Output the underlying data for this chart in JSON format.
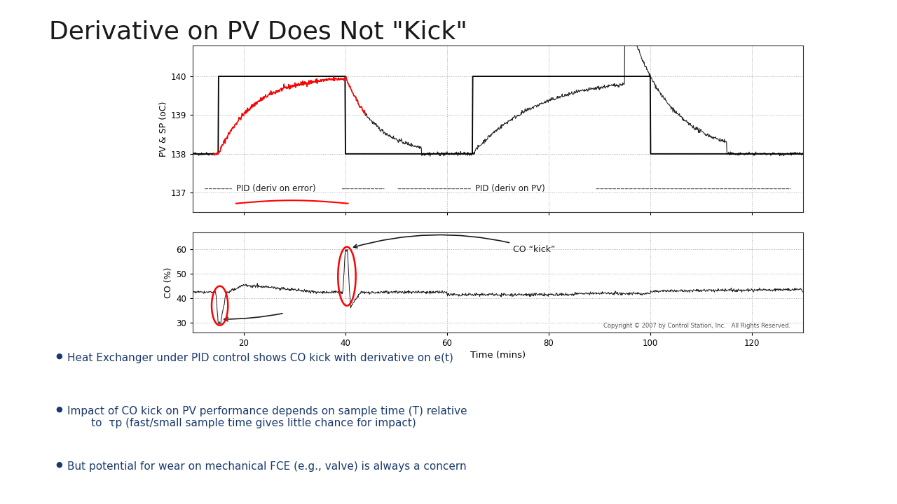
{
  "title": "Derivative on PV Does Not \"Kick\"",
  "title_fontsize": 26,
  "title_color": "#1a1a1a",
  "xlabel": "Time (mins)",
  "ylabel_top": "PV & SP (oC)",
  "ylabel_bottom": "CO (%)",
  "x_ticks": [
    20,
    40,
    60,
    80,
    100,
    120
  ],
  "x_lim": [
    10,
    130
  ],
  "pv_ylim": [
    136.5,
    140.8
  ],
  "pv_yticks": [
    137,
    138,
    139,
    140
  ],
  "co_ylim": [
    26,
    67
  ],
  "co_yticks": [
    30,
    40,
    50,
    60
  ],
  "background": "#ffffff",
  "plot_bg": "#ffffff",
  "bullet_color": "#1a3a6b",
  "bullet_text_color": "#1a3a6b",
  "label_pid_error": "PID (deriv on error)",
  "label_pid_pv": "PID (deriv on PV)",
  "label_co_kick": "CO “kick”",
  "copyright": "Copyright © 2007 by Control Station, Inc.   All Rights Reserved.",
  "bullets": [
    "Heat Exchanger under PID control shows CO kick with derivative on e(t)",
    "Impact of CO kick on PV performance depends on sample time (T) relative\n       to  τp (fast/small sample time gives little chance for impact)",
    "But potential for wear on mechanical FCE (e.g., valve) is always a concern"
  ]
}
